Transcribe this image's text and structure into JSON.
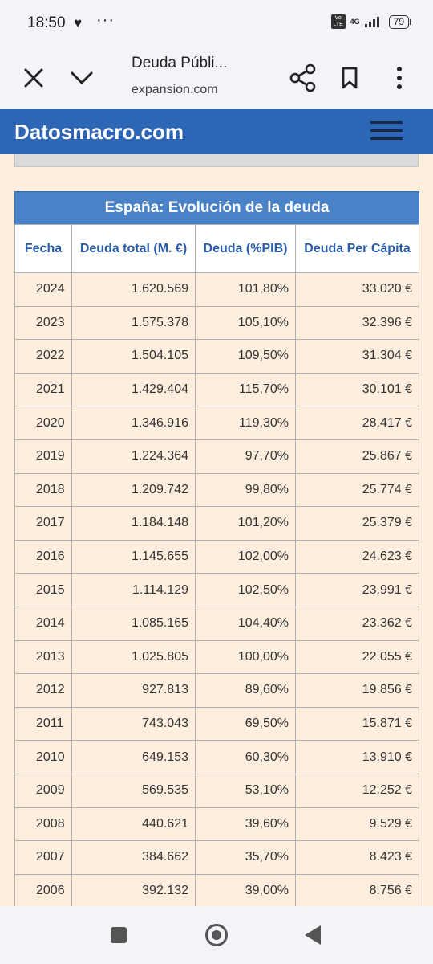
{
  "status_bar": {
    "time": "18:50",
    "network": "4G",
    "volte_label": "Vo LTE",
    "battery": "79"
  },
  "browser": {
    "page_title": "Deuda Públi...",
    "domain": "expansion.com"
  },
  "site": {
    "brand": "Datosmacro.com"
  },
  "table": {
    "caption": "España: Evolución de la deuda",
    "headers": [
      "Fecha",
      "Deuda total (M. €)",
      "Deuda (%PIB)",
      "Deuda Per Cápita"
    ],
    "rows": [
      [
        "2024",
        "1.620.569",
        "101,80%",
        "33.020 €"
      ],
      [
        "2023",
        "1.575.378",
        "105,10%",
        "32.396 €"
      ],
      [
        "2022",
        "1.504.105",
        "109,50%",
        "31.304 €"
      ],
      [
        "2021",
        "1.429.404",
        "115,70%",
        "30.101 €"
      ],
      [
        "2020",
        "1.346.916",
        "119,30%",
        "28.417 €"
      ],
      [
        "2019",
        "1.224.364",
        "97,70%",
        "25.867 €"
      ],
      [
        "2018",
        "1.209.742",
        "99,80%",
        "25.774 €"
      ],
      [
        "2017",
        "1.184.148",
        "101,20%",
        "25.379 €"
      ],
      [
        "2016",
        "1.145.655",
        "102,00%",
        "24.623 €"
      ],
      [
        "2015",
        "1.114.129",
        "102,50%",
        "23.991 €"
      ],
      [
        "2014",
        "1.085.165",
        "104,40%",
        "23.362 €"
      ],
      [
        "2013",
        "1.025.805",
        "100,00%",
        "22.055 €"
      ],
      [
        "2012",
        "927.813",
        "89,60%",
        "19.856 €"
      ],
      [
        "2011",
        "743.043",
        "69,50%",
        "15.871 €"
      ],
      [
        "2010",
        "649.153",
        "60,30%",
        "13.910 €"
      ],
      [
        "2009",
        "569.535",
        "53,10%",
        "12.252 €"
      ],
      [
        "2008",
        "440.621",
        "39,60%",
        "9.529 €"
      ],
      [
        "2007",
        "384.662",
        "35,70%",
        "8.423 €"
      ],
      [
        "2006",
        "392.132",
        "39,00%",
        "8.756 €"
      ]
    ]
  },
  "colors": {
    "header_blue": "#2e66b6",
    "caption_blue": "#4a82c8",
    "row_bg": "#fdeedd",
    "header_text": "#2a5da8"
  },
  "icons": {
    "close": "close-icon",
    "collapse": "chevron-down-icon",
    "share": "share-icon",
    "bookmark": "bookmark-icon",
    "more": "more-vert-icon",
    "menu": "hamburger-menu-icon"
  }
}
